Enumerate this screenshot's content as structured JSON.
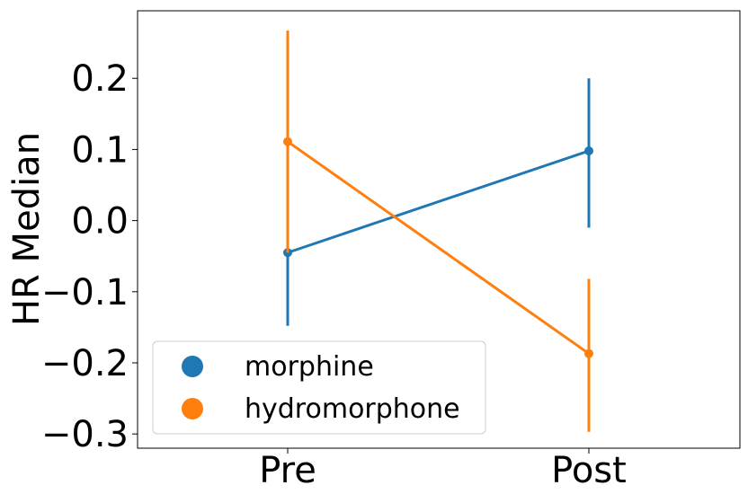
{
  "chart_data": {
    "type": "line",
    "categories": [
      "Pre",
      "Post"
    ],
    "ylabel": "HR Median",
    "xlabel": "",
    "ylim": [
      -0.32,
      0.295
    ],
    "yticks": [
      -0.3,
      -0.2,
      -0.1,
      0.0,
      0.1,
      0.2
    ],
    "ytick_labels": [
      "−0.3",
      "−0.2",
      "−0.1",
      "0.0",
      "0.1",
      "0.2"
    ],
    "grid": false,
    "legend_position": "lower-left",
    "series": [
      {
        "name": "morphine",
        "color": "#1f77b4",
        "values": [
          -0.045,
          0.098
        ],
        "ci_low": [
          -0.148,
          -0.01
        ],
        "ci_high": [
          0.048,
          0.2
        ]
      },
      {
        "name": "hydromorphone",
        "color": "#ff7f0e",
        "values": [
          0.111,
          -0.187
        ],
        "ci_low": [
          -0.045,
          -0.297
        ],
        "ci_high": [
          0.267,
          -0.082
        ]
      }
    ]
  }
}
